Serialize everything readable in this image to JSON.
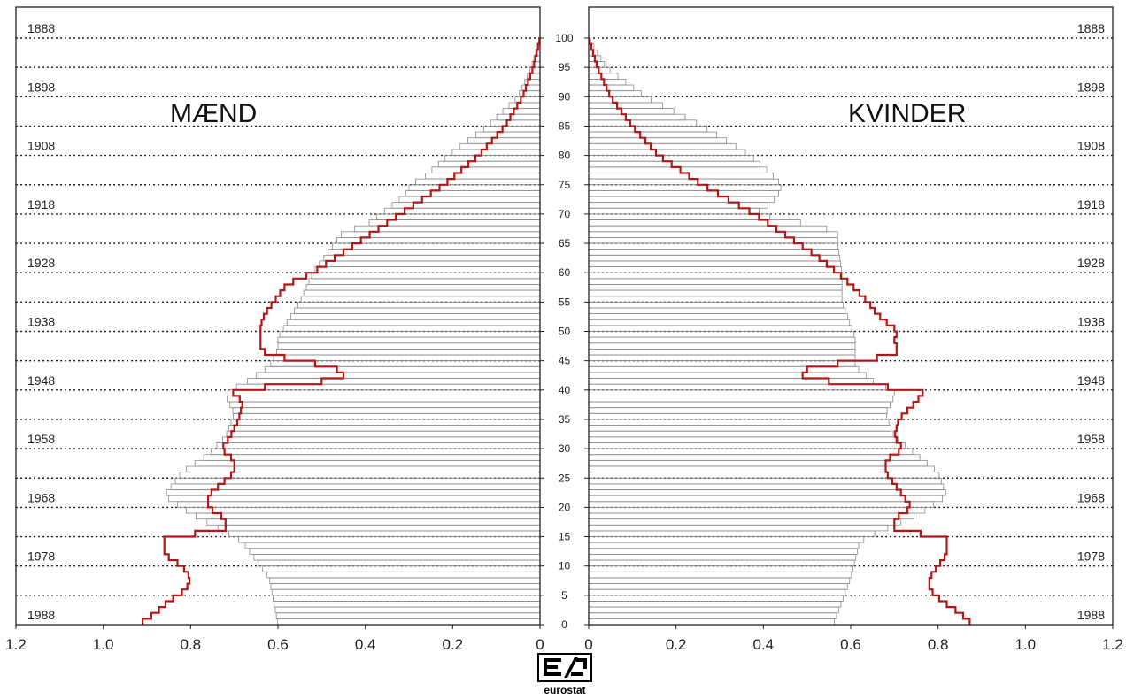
{
  "chart_data": {
    "type": "bar",
    "layout": "population-pyramid",
    "panels": [
      {
        "name": "MÆND",
        "side": "left"
      },
      {
        "name": "KVINDER",
        "side": "right"
      }
    ],
    "age_ticks": [
      0,
      5,
      10,
      15,
      20,
      25,
      30,
      35,
      40,
      45,
      50,
      55,
      60,
      65,
      70,
      75,
      80,
      85,
      90,
      95,
      100
    ],
    "year_labels": [
      "1888",
      "1898",
      "1908",
      "1918",
      "1928",
      "1938",
      "1948",
      "1958",
      "1968",
      "1978",
      "1988"
    ],
    "year_label_ages": [
      100,
      90,
      80,
      70,
      60,
      50,
      40,
      30,
      20,
      10,
      0
    ],
    "x_ticks_left": [
      "1.2",
      "1.0",
      "0.8",
      "0.6",
      "0.4",
      "0.2",
      "0"
    ],
    "x_ticks_right": [
      "0",
      "0.2",
      "0.4",
      "0.6",
      "0.8",
      "1.0",
      "1.2"
    ],
    "xlim": [
      0,
      1.2
    ],
    "ylim": [
      0,
      100
    ],
    "grid": "dotted lines every 5 years of age",
    "series": [
      {
        "style": "grey-outline bars",
        "men_anchor_ages": [
          0,
          8,
          14,
          15,
          19,
          22,
          26,
          29,
          32,
          36,
          39,
          40,
          41,
          44,
          47,
          49,
          55,
          60,
          65,
          67,
          68,
          72,
          74,
          75,
          76,
          80,
          85,
          90,
          95,
          100
        ],
        "men_anchor_values": [
          0.6,
          0.62,
          0.68,
          0.7,
          0.8,
          0.86,
          0.82,
          0.76,
          0.72,
          0.7,
          0.72,
          0.71,
          0.68,
          0.62,
          0.6,
          0.6,
          0.55,
          0.52,
          0.47,
          0.45,
          0.4,
          0.33,
          0.3,
          0.3,
          0.27,
          0.21,
          0.12,
          0.05,
          0.02,
          0.0
        ],
        "women_anchor_ages": [
          0,
          8,
          14,
          15,
          19,
          22,
          26,
          29,
          32,
          36,
          39,
          40,
          41,
          44,
          47,
          49,
          55,
          60,
          65,
          67,
          68,
          70,
          72,
          74,
          75,
          76,
          80,
          85,
          90,
          95,
          100
        ],
        "women_anchor_values": [
          0.56,
          0.6,
          0.62,
          0.64,
          0.76,
          0.82,
          0.8,
          0.75,
          0.7,
          0.68,
          0.7,
          0.7,
          0.66,
          0.61,
          0.61,
          0.61,
          0.58,
          0.58,
          0.57,
          0.57,
          0.52,
          0.38,
          0.42,
          0.44,
          0.44,
          0.43,
          0.37,
          0.26,
          0.13,
          0.04,
          0.0
        ]
      },
      {
        "style": "red line",
        "men_anchor_ages": [
          0,
          2,
          4,
          6,
          8,
          10,
          12,
          14,
          15,
          16,
          18,
          20,
          22,
          24,
          26,
          28,
          30,
          32,
          35,
          38,
          40,
          41,
          42,
          43,
          44,
          45,
          46,
          47,
          48,
          49,
          50,
          51,
          53,
          55,
          58,
          60,
          63,
          66,
          70,
          75,
          80,
          85,
          90,
          95,
          100
        ],
        "men_anchor_values": [
          0.92,
          0.88,
          0.85,
          0.81,
          0.8,
          0.82,
          0.86,
          0.86,
          0.86,
          0.72,
          0.72,
          0.76,
          0.76,
          0.73,
          0.7,
          0.7,
          0.73,
          0.71,
          0.69,
          0.68,
          0.71,
          0.55,
          0.45,
          0.45,
          0.48,
          0.55,
          0.62,
          0.64,
          0.64,
          0.64,
          0.64,
          0.64,
          0.63,
          0.61,
          0.58,
          0.52,
          0.46,
          0.4,
          0.32,
          0.22,
          0.14,
          0.08,
          0.04,
          0.015,
          0.0
        ],
        "women_anchor_ages": [
          0,
          2,
          4,
          6,
          8,
          10,
          12,
          14,
          15,
          16,
          18,
          20,
          22,
          24,
          26,
          28,
          30,
          32,
          35,
          38,
          40,
          41,
          42,
          43,
          44,
          45,
          46,
          47,
          48,
          49,
          50,
          51,
          53,
          55,
          58,
          60,
          63,
          66,
          70,
          75,
          80,
          85,
          90,
          95,
          100
        ],
        "women_anchor_values": [
          0.88,
          0.85,
          0.81,
          0.78,
          0.78,
          0.8,
          0.82,
          0.82,
          0.82,
          0.7,
          0.7,
          0.74,
          0.72,
          0.7,
          0.68,
          0.68,
          0.72,
          0.7,
          0.71,
          0.75,
          0.77,
          0.6,
          0.5,
          0.48,
          0.52,
          0.62,
          0.7,
          0.71,
          0.7,
          0.7,
          0.71,
          0.69,
          0.66,
          0.64,
          0.6,
          0.57,
          0.52,
          0.46,
          0.38,
          0.26,
          0.16,
          0.1,
          0.05,
          0.02,
          0.0
        ]
      }
    ]
  },
  "colors": {
    "bar_outline": "#8a8a8a",
    "line": "#b01818",
    "grid": "#222222",
    "axis": "#222222"
  },
  "logo": {
    "text": "eurostat"
  }
}
